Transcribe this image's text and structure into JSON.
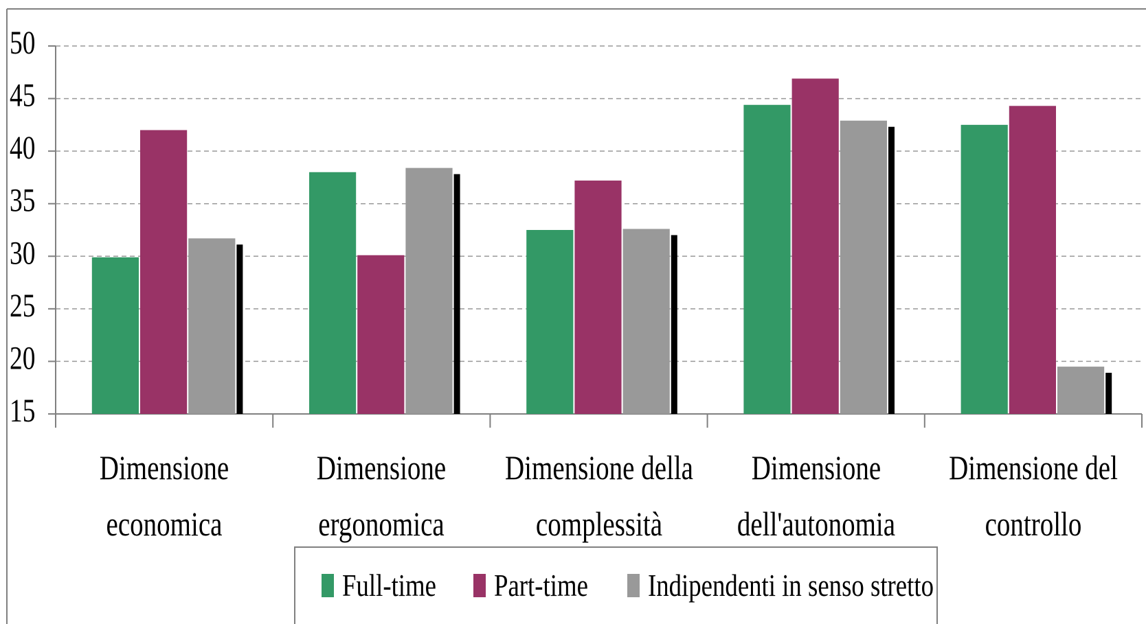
{
  "chart_data": {
    "type": "bar",
    "categories": [
      "Dimensione economica",
      "Dimensione ergonomica",
      "Dimensione della complessità",
      "Dimensione dell'autonomia",
      "Dimensione del controllo"
    ],
    "series": [
      {
        "name": "Full-time",
        "color": "#339966",
        "values": [
          29.9,
          38.0,
          32.5,
          44.4,
          42.5
        ]
      },
      {
        "name": "Part-time",
        "color": "#993366",
        "values": [
          42.0,
          30.1,
          37.2,
          46.9,
          44.3
        ]
      },
      {
        "name": "Indipendenti in senso stretto",
        "color": "#999999",
        "values": [
          31.7,
          38.4,
          32.6,
          42.9,
          19.5
        ]
      }
    ],
    "ylim": [
      15,
      50
    ],
    "yticks": [
      15,
      20,
      25,
      30,
      35,
      40,
      45,
      50
    ],
    "grid": true,
    "legend": "bottom"
  }
}
